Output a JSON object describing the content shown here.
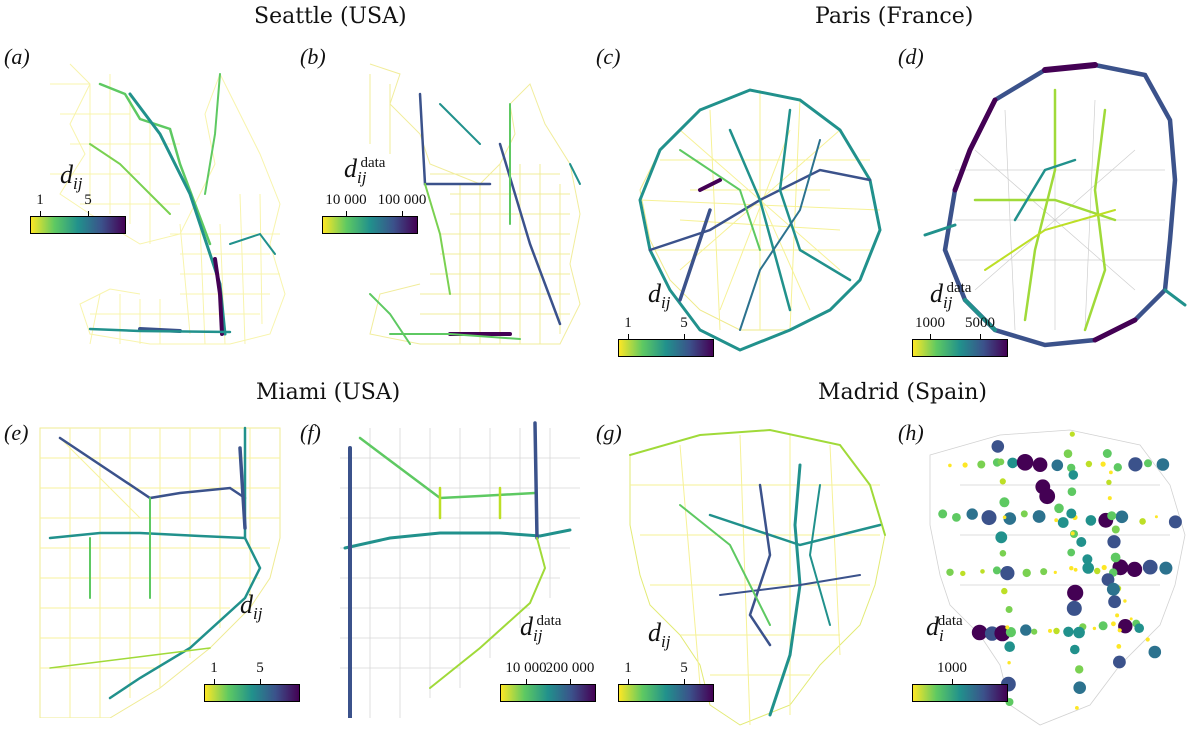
{
  "titles": {
    "seattle": "Seattle (USA)",
    "paris": "Paris (France)",
    "miami": "Miami (USA)",
    "madrid": "Madrid (Spain)"
  },
  "panels": {
    "a": "(a)",
    "b": "(b)",
    "c": "(c)",
    "d": "(d)",
    "e": "(e)",
    "f": "(f)",
    "g": "(g)",
    "h": "(h)"
  },
  "colorbars": {
    "a": {
      "symbol": "d",
      "sub": "ij",
      "sup": "",
      "ticks": [
        "1",
        "5"
      ]
    },
    "b": {
      "symbol": "d",
      "sub": "ij",
      "sup": "data",
      "ticks": [
        "10 000",
        "100 000"
      ]
    },
    "c": {
      "symbol": "d",
      "sub": "ij",
      "sup": "",
      "ticks": [
        "1",
        "5"
      ]
    },
    "d": {
      "symbol": "d",
      "sub": "ij",
      "sup": "data",
      "ticks": [
        "1000",
        "5000"
      ]
    },
    "e": {
      "symbol": "d",
      "sub": "ij",
      "sup": "",
      "ticks": [
        "1",
        "5"
      ]
    },
    "f": {
      "symbol": "d",
      "sub": "ij",
      "sup": "data",
      "ticks": [
        "10 000",
        "200 000"
      ]
    },
    "g": {
      "symbol": "d",
      "sub": "ij",
      "sup": "",
      "ticks": [
        "1",
        "5"
      ]
    },
    "h": {
      "symbol": "d",
      "sub": "i",
      "sup": "data",
      "ticks": [
        "1000"
      ]
    }
  },
  "colors": {
    "low": "#fde725",
    "mid_low": "#5ec962",
    "mid": "#21918c",
    "mid_high": "#3b528b",
    "high": "#440154"
  }
}
